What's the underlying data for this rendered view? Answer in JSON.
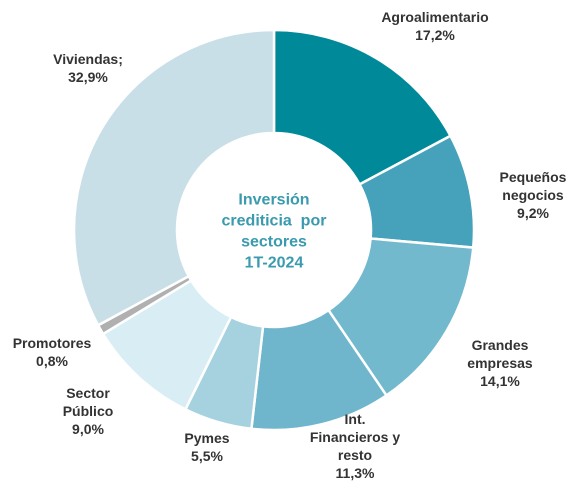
{
  "chart_data": {
    "type": "pie",
    "donut": true,
    "title": [
      "Inversión",
      "crediticia  por",
      "sectores",
      "1T-2024"
    ],
    "categories": [
      "Agroalimentario",
      "Pequeños negocios",
      "Grandes empresas",
      "Int. Financieros y resto",
      "Pymes",
      "Sector Público",
      "Promotores",
      "Viviendas;"
    ],
    "values": [
      17.2,
      9.2,
      14.1,
      11.3,
      5.5,
      9.0,
      0.8,
      32.9
    ],
    "value_labels": [
      "17,2%",
      "9,2%",
      "14,1%",
      "11,3%",
      "5,5%",
      "9,0%",
      "0,8%",
      "32,9%"
    ],
    "colors": [
      "#008a99",
      "#45a2ba",
      "#72b9cd",
      "#6fb5cc",
      "#a6d2e0",
      "#d9edf4",
      "#b0b0b0",
      "#c9dfe8"
    ]
  }
}
